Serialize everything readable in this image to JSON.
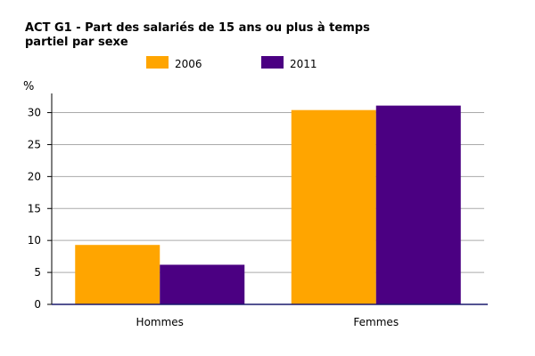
{
  "chart_data": {
    "type": "bar",
    "title_lines": [
      "ACT G1 - Part des salariés de 15 ans ou plus à temps",
      "partiel par sexe"
    ],
    "ylabel": "%",
    "xlabel": "",
    "categories": [
      "Hommes",
      "Femmes"
    ],
    "series": [
      {
        "name": "2006",
        "values": [
          9.3,
          30.4
        ],
        "color": "#FFA500"
      },
      {
        "name": "2011",
        "values": [
          6.2,
          31.1
        ],
        "color": "#4B0082"
      }
    ],
    "ylim": [
      0,
      33
    ],
    "yticks": [
      0,
      5,
      10,
      15,
      20,
      25,
      30
    ],
    "grid": true,
    "legend_position": "top-center"
  }
}
